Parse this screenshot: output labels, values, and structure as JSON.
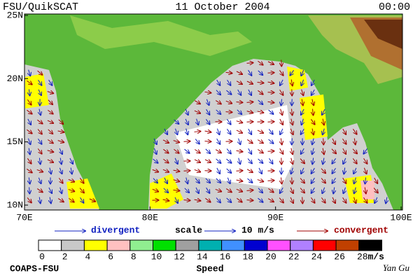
{
  "header": {
    "product": "FSU/QuikSCAT",
    "date": "11 October 2004",
    "time": "00:00"
  },
  "map": {
    "lon_ticks": [
      {
        "value": 70,
        "label": "70E"
      },
      {
        "value": 80,
        "label": "80E"
      },
      {
        "value": 90,
        "label": "90E"
      },
      {
        "value": 100,
        "label": "100E"
      }
    ],
    "lat_ticks": [
      {
        "value": 25,
        "label": "25N"
      },
      {
        "value": 20,
        "label": "20N"
      },
      {
        "value": 15,
        "label": "15N"
      },
      {
        "value": 10,
        "label": "10N"
      }
    ]
  },
  "legend": {
    "divergent": "divergent",
    "scale": "scale",
    "scale_value": "10 m/s",
    "convergent": "convergent"
  },
  "colorbar": {
    "labels": [
      0,
      2,
      4,
      6,
      8,
      10,
      12,
      14,
      16,
      18,
      20,
      22,
      24,
      26,
      28
    ],
    "colors": [
      "#ffffff",
      "#c8c8c8",
      "#ffff00",
      "#ffc0c0",
      "#90ee90",
      "#00e000",
      "#a0a0a0",
      "#00b0b0",
      "#4090ff",
      "#0000d0",
      "#ff50ff",
      "#b080ff",
      "#ff0000",
      "#c04000",
      "#000000"
    ],
    "unit": "m/s",
    "title": "Speed"
  },
  "footer": {
    "left": "COAPS-FSU",
    "right": "Yan Gu"
  }
}
